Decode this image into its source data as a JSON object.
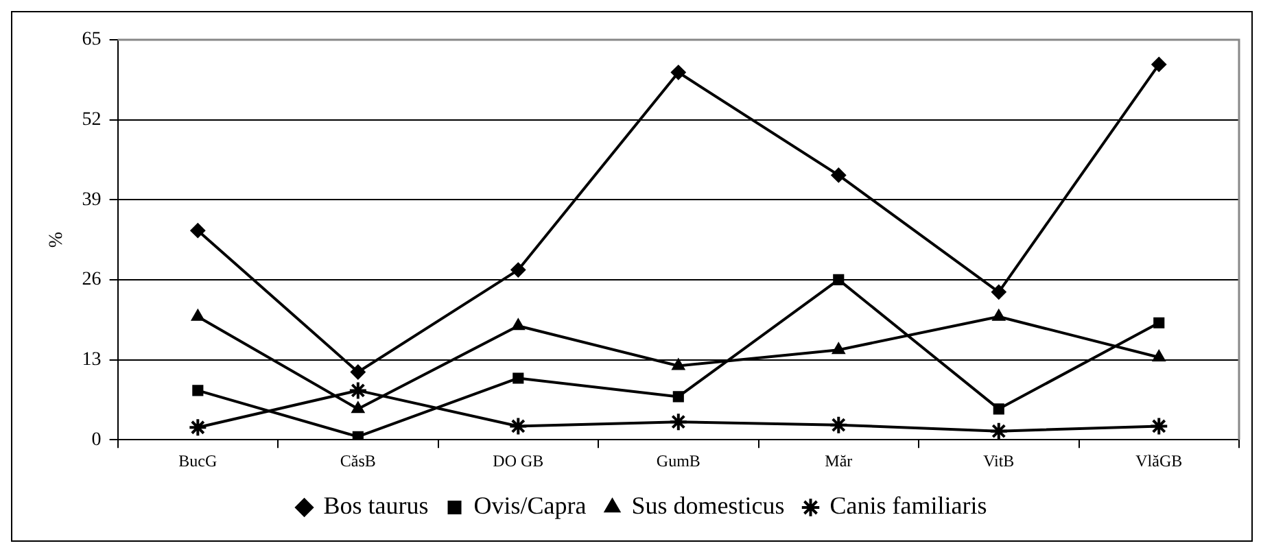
{
  "chart_data": {
    "type": "line",
    "ylabel": "%",
    "categories": [
      "BucG",
      "CăsB",
      "DO GB",
      "GumB",
      "Măr",
      "VitB",
      "VlăGB"
    ],
    "series": [
      {
        "name": "Bos taurus",
        "color": "#000000",
        "marker": "diamond",
        "values": [
          34,
          11,
          27.6,
          59.7,
          43,
          24,
          61
        ]
      },
      {
        "name": "Ovis/Capra",
        "color": "#000000",
        "marker": "square",
        "values": [
          8,
          0.5,
          10,
          7,
          26,
          5,
          19
        ]
      },
      {
        "name": "Sus domesticus",
        "color": "#000000",
        "marker": "triangle",
        "values": [
          20,
          5,
          18.5,
          12,
          14.6,
          20,
          13.4
        ]
      },
      {
        "name": "Canis familiaris",
        "color": "#000000",
        "marker": "cross",
        "values": [
          2,
          8,
          2.2,
          2.9,
          2.4,
          1.4,
          2.2
        ]
      }
    ],
    "ylim": [
      0,
      65
    ],
    "yticks": [
      0,
      13,
      26,
      39,
      52,
      65
    ],
    "grid": "y",
    "legend": "bottom",
    "line_style": "solid"
  }
}
